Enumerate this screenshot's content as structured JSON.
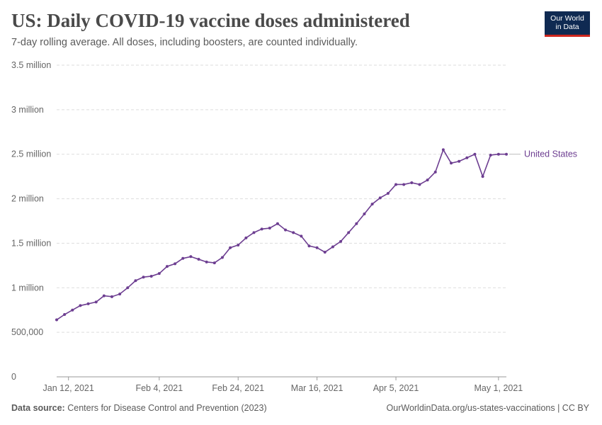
{
  "header": {
    "title": "US: Daily COVID-19 vaccine doses administered",
    "subtitle": "7-day rolling average. All doses, including boosters, are counted individually.",
    "logo_line1": "Our World",
    "logo_line2": "in Data"
  },
  "footer": {
    "source_label": "Data source:",
    "source_text": "Centers for Disease Control and Prevention (2023)",
    "right_text": "OurWorldinData.org/us-states-vaccinations | CC BY"
  },
  "chart_data": {
    "type": "line",
    "x_start": "2021-01-09",
    "x_end": "2021-05-03",
    "ylim": [
      0,
      3500000
    ],
    "y_ticks": [
      0,
      500000,
      1000000,
      1500000,
      2000000,
      2500000,
      3000000,
      3500000
    ],
    "y_tick_labels": [
      "0",
      "500,000",
      "1 million",
      "1.5 million",
      "2 million",
      "2.5 million",
      "3 million",
      "3.5 million"
    ],
    "x_ticks": [
      "2021-01-12",
      "2021-02-04",
      "2021-02-24",
      "2021-03-16",
      "2021-04-05",
      "2021-05-01"
    ],
    "x_tick_labels": [
      "Jan 12, 2021",
      "Feb 4, 2021",
      "Feb 24, 2021",
      "Mar 16, 2021",
      "Apr 5, 2021",
      "May 1, 2021"
    ],
    "grid": true,
    "series": [
      {
        "name": "United States",
        "color": "#6d3e91",
        "points": [
          [
            "2021-01-09",
            640000
          ],
          [
            "2021-01-11",
            700000
          ],
          [
            "2021-01-13",
            750000
          ],
          [
            "2021-01-15",
            800000
          ],
          [
            "2021-01-17",
            820000
          ],
          [
            "2021-01-19",
            840000
          ],
          [
            "2021-01-21",
            910000
          ],
          [
            "2021-01-23",
            900000
          ],
          [
            "2021-01-25",
            930000
          ],
          [
            "2021-01-27",
            1000000
          ],
          [
            "2021-01-29",
            1080000
          ],
          [
            "2021-01-31",
            1120000
          ],
          [
            "2021-02-02",
            1130000
          ],
          [
            "2021-02-04",
            1160000
          ],
          [
            "2021-02-06",
            1240000
          ],
          [
            "2021-02-08",
            1270000
          ],
          [
            "2021-02-10",
            1330000
          ],
          [
            "2021-02-12",
            1350000
          ],
          [
            "2021-02-14",
            1320000
          ],
          [
            "2021-02-16",
            1290000
          ],
          [
            "2021-02-18",
            1280000
          ],
          [
            "2021-02-20",
            1340000
          ],
          [
            "2021-02-22",
            1450000
          ],
          [
            "2021-02-24",
            1480000
          ],
          [
            "2021-02-26",
            1560000
          ],
          [
            "2021-02-28",
            1620000
          ],
          [
            "2021-03-02",
            1660000
          ],
          [
            "2021-03-04",
            1670000
          ],
          [
            "2021-03-06",
            1720000
          ],
          [
            "2021-03-08",
            1650000
          ],
          [
            "2021-03-10",
            1620000
          ],
          [
            "2021-03-12",
            1580000
          ],
          [
            "2021-03-14",
            1470000
          ],
          [
            "2021-03-16",
            1450000
          ],
          [
            "2021-03-18",
            1400000
          ],
          [
            "2021-03-20",
            1460000
          ],
          [
            "2021-03-22",
            1520000
          ],
          [
            "2021-03-24",
            1620000
          ],
          [
            "2021-03-26",
            1720000
          ],
          [
            "2021-03-28",
            1830000
          ],
          [
            "2021-03-30",
            1940000
          ],
          [
            "2021-04-01",
            2010000
          ],
          [
            "2021-04-03",
            2060000
          ],
          [
            "2021-04-05",
            2160000
          ],
          [
            "2021-04-07",
            2160000
          ],
          [
            "2021-04-09",
            2180000
          ],
          [
            "2021-04-11",
            2160000
          ],
          [
            "2021-04-13",
            2210000
          ],
          [
            "2021-04-15",
            2300000
          ],
          [
            "2021-04-17",
            2550000
          ],
          [
            "2021-04-19",
            2400000
          ],
          [
            "2021-04-21",
            2420000
          ],
          [
            "2021-04-23",
            2460000
          ],
          [
            "2021-04-25",
            2500000
          ],
          [
            "2021-04-27",
            2250000
          ],
          [
            "2021-04-29",
            2490000
          ],
          [
            "2021-05-01",
            2500000
          ],
          [
            "2021-05-03",
            2500000
          ]
        ]
      }
    ]
  }
}
